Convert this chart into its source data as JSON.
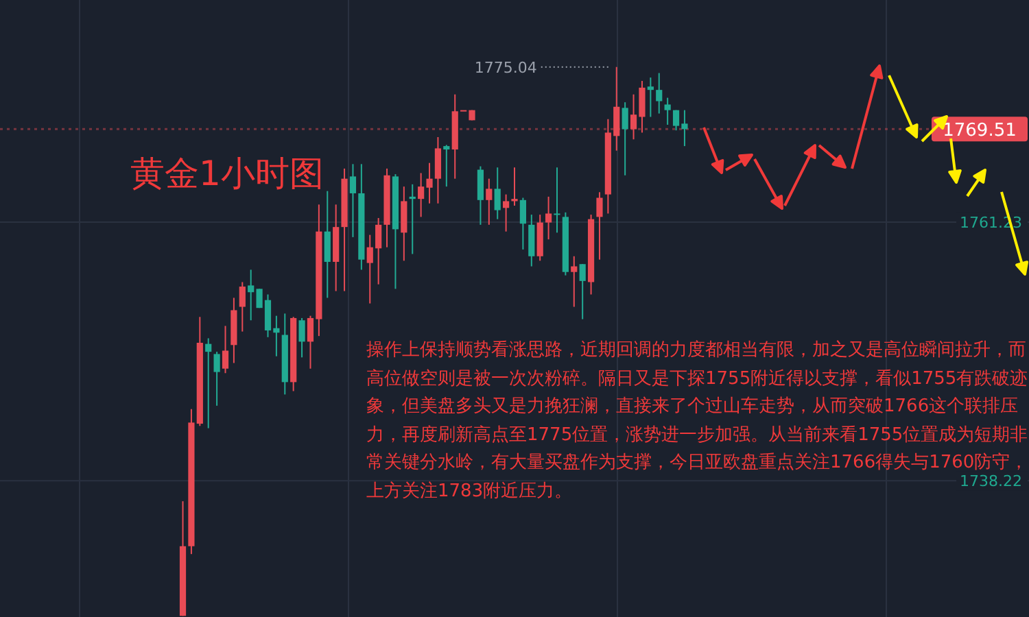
{
  "chart_data": {
    "type": "candlestick",
    "title": "黄金1小时图",
    "categories": [
      null,
      null,
      null,
      null,
      null,
      null,
      null,
      null,
      null,
      null,
      null,
      null,
      null,
      null,
      null,
      null,
      null,
      null,
      null,
      null,
      null,
      null,
      null,
      null,
      null,
      null,
      null,
      null,
      null,
      null,
      null,
      null,
      null,
      null,
      null,
      null,
      null,
      null,
      null,
      null,
      null,
      null,
      null,
      null,
      null,
      null,
      null,
      null,
      null,
      null,
      null,
      null,
      null,
      null,
      null,
      null,
      null,
      null,
      null,
      null,
      null,
      null,
      null,
      null,
      null,
      null,
      null,
      null,
      null,
      null,
      null,
      null,
      null,
      null,
      null,
      null,
      null,
      null,
      null,
      null,
      null,
      null,
      null,
      null,
      null,
      null,
      null,
      null,
      null,
      null,
      null,
      null,
      null,
      null,
      null,
      null,
      null,
      null,
      null,
      null,
      null,
      null,
      null,
      null,
      null,
      null,
      null,
      null,
      null,
      null,
      null,
      null,
      null,
      null,
      null,
      null,
      null,
      null,
      null,
      null,
      null
    ],
    "ohlc": [
      null,
      null,
      null,
      null,
      null,
      null,
      null,
      null,
      null,
      null,
      null,
      null,
      null,
      null,
      null,
      null,
      null,
      null,
      null,
      null,
      null,
      [
        1726.2,
        1736.4,
        1726.2,
        1732.4
      ],
      [
        1732.4,
        1744.6,
        1731.7,
        1743.4
      ],
      [
        1743.3,
        1752.8,
        1743.1,
        1750.5
      ],
      [
        1750.4,
        1750.9,
        1742.9,
        1749.7
      ],
      [
        1749.5,
        1749.7,
        1744.9,
        1747.9
      ],
      [
        1748.2,
        1752.0,
        1747.8,
        1749.8
      ],
      [
        1750.3,
        1754.5,
        1748.7,
        1753.4
      ],
      [
        1753.7,
        1755.9,
        1751.5,
        1755.5
      ],
      [
        1755.6,
        1757.0,
        1752.5,
        1755.0
      ],
      [
        1755.3,
        1755.3,
        1753.6,
        1753.6
      ],
      [
        1754.3,
        1754.8,
        1751.0,
        1751.6
      ],
      [
        1751.8,
        1752.9,
        1749.3,
        1751.4
      ],
      [
        1751.2,
        1753.1,
        1745.9,
        1747.0
      ],
      [
        1747.0,
        1752.8,
        1746.2,
        1752.7
      ],
      [
        1752.5,
        1752.7,
        1749.2,
        1750.6
      ],
      [
        1750.6,
        1752.9,
        1748.2,
        1752.7
      ],
      [
        1752.6,
        1762.8,
        1751.1,
        1760.4
      ],
      [
        1760.4,
        1764.0,
        1754.5,
        1757.7
      ],
      [
        1757.7,
        1762.8,
        1755.1,
        1760.8
      ],
      [
        1760.8,
        1766.0,
        1755.1,
        1765.1
      ],
      [
        1765.3,
        1766.4,
        1759.9,
        1763.8
      ],
      [
        1763.8,
        1766.4,
        1757.0,
        1757.9
      ],
      [
        1757.6,
        1760.1,
        1754.0,
        1759.0
      ],
      [
        1758.9,
        1761.6,
        1755.7,
        1761.0
      ],
      [
        1761.0,
        1766.0,
        1759.0,
        1765.4
      ],
      [
        1765.3,
        1765.5,
        1755.3,
        1760.6
      ],
      [
        1760.3,
        1764.4,
        1757.8,
        1763.1
      ],
      [
        1763.5,
        1764.6,
        1758.4,
        1763.3
      ],
      [
        1763.3,
        1765.6,
        1761.7,
        1764.4
      ],
      [
        1764.3,
        1766.5,
        1762.9,
        1765.1
      ],
      [
        1765.1,
        1768.8,
        1762.9,
        1767.8
      ],
      [
        1768.0,
        1768.1,
        1764.4,
        1767.7
      ],
      [
        1767.7,
        1772.6,
        1765.1,
        1771.1
      ],
      [
        1771.2,
        1771.2,
        1771.2,
        1771.2
      ],
      [
        1770.3,
        1771.2,
        1770.3,
        1771.2
      ],
      [
        1765.9,
        1766.2,
        1761.0,
        1763.2
      ],
      [
        1763.2,
        1765.1,
        1761.0,
        1764.2
      ],
      [
        1764.2,
        1766.1,
        1761.5,
        1762.3
      ],
      [
        1762.5,
        1763.7,
        1760.4,
        1763.1
      ],
      [
        1763.1,
        1766.1,
        1762.7,
        1763.3
      ],
      [
        1763.2,
        1763.4,
        1758.8,
        1761.1
      ],
      [
        1761.0,
        1761.9,
        1757.3,
        1758.2
      ],
      [
        1758.2,
        1761.9,
        1757.8,
        1761.2
      ],
      [
        1761.2,
        1763.5,
        1759.7,
        1762.0
      ],
      [
        1762.0,
        1766.1,
        1760.3,
        1761.9
      ],
      [
        1761.7,
        1762.1,
        1756.5,
        1756.8
      ],
      [
        1756.8,
        1758.2,
        1753.7,
        1757.3
      ],
      [
        1757.5,
        1757.5,
        1752.6,
        1756.0
      ],
      [
        1755.9,
        1761.9,
        1754.8,
        1761.5
      ],
      [
        1761.7,
        1763.9,
        1757.9,
        1763.4
      ],
      [
        1763.7,
        1770.4,
        1762.0,
        1769.2
      ],
      [
        1768.9,
        1775.04,
        1767.6,
        1771.5
      ],
      [
        1771.4,
        1771.9,
        1765.4,
        1769.5
      ],
      [
        1769.5,
        1772.6,
        1768.6,
        1770.8
      ],
      [
        1770.6,
        1773.8,
        1769.2,
        1773.2
      ],
      [
        1773.3,
        1774.1,
        1770.6,
        1773.0
      ],
      [
        1773.0,
        1774.5,
        1770.9,
        1772.0
      ],
      [
        1771.7,
        1772.3,
        1769.9,
        1771.2
      ],
      [
        1771.2,
        1771.2,
        1769.4,
        1769.8
      ],
      [
        1770.0,
        1771.2,
        1768.0,
        1769.51
      ],
      null,
      null,
      null,
      null,
      null,
      null,
      null,
      null,
      null,
      null,
      null,
      null,
      null,
      null,
      null,
      null,
      null,
      null,
      null,
      null,
      null,
      null,
      null,
      null,
      null,
      null,
      null,
      null,
      null,
      null,
      null,
      null,
      null,
      null,
      null,
      null,
      null,
      null,
      null,
      null
    ],
    "colors": [
      null,
      null,
      null,
      null,
      null,
      null,
      null,
      null,
      null,
      null,
      null,
      null,
      null,
      null,
      null,
      null,
      null,
      null,
      null,
      null,
      null,
      "#e84b55",
      "#e84b55",
      "#e84b55",
      "#22ab94",
      "#22ab94",
      "#e84b55",
      "#e84b55",
      "#e84b55",
      "#22ab94",
      "#22ab94",
      "#22ab94",
      "#22ab94",
      "#22ab94",
      "#e84b55",
      "#22ab94",
      "#e84b55",
      "#e84b55",
      "#22ab94",
      "#e84b55",
      "#e84b55",
      "#22ab94",
      "#22ab94",
      "#e84b55",
      "#e84b55",
      "#e84b55",
      "#22ab94",
      "#e84b55",
      "#22ab94",
      "#e84b55",
      "#e84b55",
      "#e84b55",
      "#22ab94",
      "#e84b55",
      "#e84b55",
      "#e84b55",
      "#22ab94",
      "#e84b55",
      "#22ab94",
      "#e84b55",
      "#e84b55",
      "#22ab94",
      "#22ab94",
      "#e84b55",
      "#e84b55",
      "#22ab94",
      "#22ab94",
      "#e84b55",
      "#22ab94",
      "#e84b55",
      "#e84b55",
      "#e84b55",
      "#e84b55",
      "#22ab94",
      "#e84b55",
      "#e84b55",
      "#22ab94",
      "#22ab94",
      "#22ab94",
      "#22ab94",
      "#22ab94",
      null,
      null,
      null,
      null,
      null,
      null,
      null,
      null,
      null,
      null,
      null,
      null,
      null,
      null,
      null,
      null,
      null,
      null,
      null,
      null,
      null,
      null,
      null,
      null,
      null,
      null,
      null,
      null,
      null,
      null,
      null,
      null,
      null,
      null,
      null,
      null,
      null,
      null,
      null,
      null
    ],
    "ylim": [
      1726.1,
      1781.0
    ],
    "yticks": [
      1761.23,
      1738.22
    ],
    "grid": true,
    "ref_lines": [
      {
        "axis": "y",
        "value": 1769.51,
        "label": "1769.51",
        "color": "#e84b55",
        "line_style": "dotted"
      }
    ],
    "annotations": [
      "1775.04",
      "操作上保持顺势看涨思路，近期回调的力度都相当有限，加之又是高位瞬间拉升，而高位做空则是被一次次粉碎。隔日又是下探1755附近得以支撑，看似1755有跌破迹象，但美盘多头又是力挽狂澜，直接来了个过山车走势，从而突破1766这个联排压力，再度刷新高点至1775位置，涨势进一步加强。从当前来看1755位置成为短期非常关键分水岭，有大量买盘作为支撑，今日亚欧盘重点关注1766得失与1760防守，上方关注1783附近压力。"
    ]
  }
}
